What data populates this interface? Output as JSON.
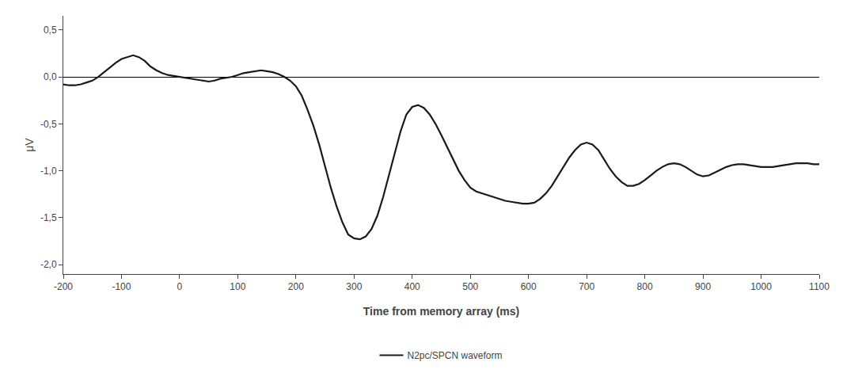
{
  "chart_data": {
    "type": "line",
    "xlabel": "Time from memory array (ms)",
    "ylabel": "μV",
    "xlim": [
      -200,
      1100
    ],
    "ylim": [
      -2.1,
      0.65
    ],
    "xticks": [
      -200,
      -100,
      0,
      100,
      200,
      300,
      400,
      500,
      600,
      700,
      800,
      900,
      1000,
      1100
    ],
    "yticks": [
      {
        "value": 0.5,
        "label": "0,5"
      },
      {
        "value": 0.0,
        "label": "0,0"
      },
      {
        "value": -0.5,
        "label": "-0,5"
      },
      {
        "value": -1.0,
        "label": "-1,0"
      },
      {
        "value": -1.5,
        "label": "-1,5"
      },
      {
        "value": -2.0,
        "label": "-2,0"
      }
    ],
    "grid": false,
    "legend": "bottom",
    "x": [
      -200,
      -190,
      -180,
      -170,
      -160,
      -150,
      -140,
      -130,
      -120,
      -110,
      -100,
      -90,
      -80,
      -70,
      -60,
      -50,
      -40,
      -30,
      -20,
      -10,
      0,
      10,
      20,
      30,
      40,
      50,
      60,
      70,
      80,
      90,
      100,
      110,
      120,
      130,
      140,
      150,
      160,
      170,
      180,
      190,
      200,
      210,
      220,
      230,
      240,
      250,
      260,
      270,
      280,
      290,
      300,
      310,
      320,
      330,
      340,
      350,
      360,
      370,
      380,
      390,
      400,
      410,
      420,
      430,
      440,
      450,
      460,
      470,
      480,
      490,
      500,
      510,
      520,
      530,
      540,
      550,
      560,
      570,
      580,
      590,
      600,
      610,
      620,
      630,
      640,
      650,
      660,
      670,
      680,
      690,
      700,
      710,
      720,
      730,
      740,
      750,
      760,
      770,
      780,
      790,
      800,
      810,
      820,
      830,
      840,
      850,
      860,
      870,
      880,
      890,
      900,
      910,
      920,
      930,
      940,
      950,
      960,
      970,
      980,
      990,
      1000,
      1010,
      1020,
      1030,
      1040,
      1050,
      1060,
      1070,
      1080,
      1090,
      1100
    ],
    "series": [
      {
        "name": "N2pc/SPCN waveform",
        "color": "#1a1a1a",
        "values": [
          -0.08,
          -0.09,
          -0.09,
          -0.08,
          -0.06,
          -0.04,
          0.0,
          0.05,
          0.1,
          0.15,
          0.19,
          0.21,
          0.23,
          0.21,
          0.17,
          0.11,
          0.07,
          0.04,
          0.02,
          0.01,
          0.0,
          -0.01,
          -0.02,
          -0.03,
          -0.04,
          -0.05,
          -0.04,
          -0.02,
          -0.01,
          0.0,
          0.02,
          0.04,
          0.05,
          0.06,
          0.07,
          0.06,
          0.05,
          0.03,
          0.0,
          -0.04,
          -0.1,
          -0.2,
          -0.35,
          -0.52,
          -0.72,
          -0.95,
          -1.18,
          -1.38,
          -1.55,
          -1.68,
          -1.72,
          -1.73,
          -1.7,
          -1.62,
          -1.48,
          -1.28,
          -1.05,
          -0.8,
          -0.58,
          -0.4,
          -0.32,
          -0.3,
          -0.33,
          -0.4,
          -0.5,
          -0.62,
          -0.75,
          -0.88,
          -1.0,
          -1.1,
          -1.18,
          -1.22,
          -1.24,
          -1.26,
          -1.28,
          -1.3,
          -1.32,
          -1.33,
          -1.34,
          -1.35,
          -1.35,
          -1.34,
          -1.3,
          -1.24,
          -1.16,
          -1.06,
          -0.96,
          -0.86,
          -0.78,
          -0.72,
          -0.7,
          -0.72,
          -0.78,
          -0.88,
          -0.98,
          -1.06,
          -1.12,
          -1.16,
          -1.16,
          -1.14,
          -1.1,
          -1.05,
          -1.0,
          -0.96,
          -0.93,
          -0.92,
          -0.93,
          -0.96,
          -1.0,
          -1.04,
          -1.06,
          -1.05,
          -1.02,
          -0.99,
          -0.96,
          -0.94,
          -0.93,
          -0.93,
          -0.94,
          -0.95,
          -0.96,
          -0.96,
          -0.96,
          -0.95,
          -0.94,
          -0.93,
          -0.92,
          -0.92,
          -0.92,
          -0.93,
          -0.93
        ]
      }
    ]
  }
}
